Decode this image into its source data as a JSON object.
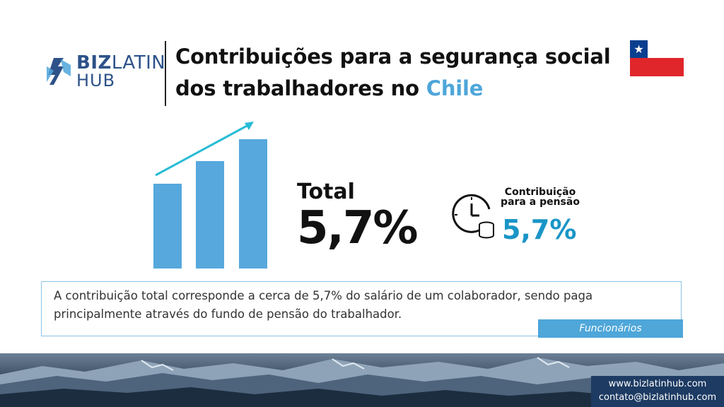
{
  "logo": {
    "biz": "BIZ",
    "latin": "LATIN",
    "hub": "HUB"
  },
  "title": {
    "line1": "Contribuições para a segurança social",
    "line2_prefix": "dos trabalhadores no ",
    "line2_accent": "Chile"
  },
  "colors": {
    "accent": "#4ea6d9",
    "bar": "#56a8dd",
    "pension_value": "#1a95c7",
    "brand_dark": "#2d5289",
    "footer_box": "#1d3b63"
  },
  "total": {
    "label": "Total",
    "value": "5,7%"
  },
  "pension": {
    "label_line1": "Contribuição",
    "label_line2": "para a pensão",
    "value": "5,7%",
    "icon": "clock-coins-icon"
  },
  "note": {
    "text": "A contribuição total corresponde a cerca de 5,7% do salário de um colaborador, sendo paga principalmente através do fundo de pensão do trabalhador.",
    "tag": "Funcionários"
  },
  "footer": {
    "website": "www.bizlatinhub.com",
    "email": "contato@bizlatinhub.com"
  },
  "flag": {
    "icon": "chile-flag-icon"
  }
}
